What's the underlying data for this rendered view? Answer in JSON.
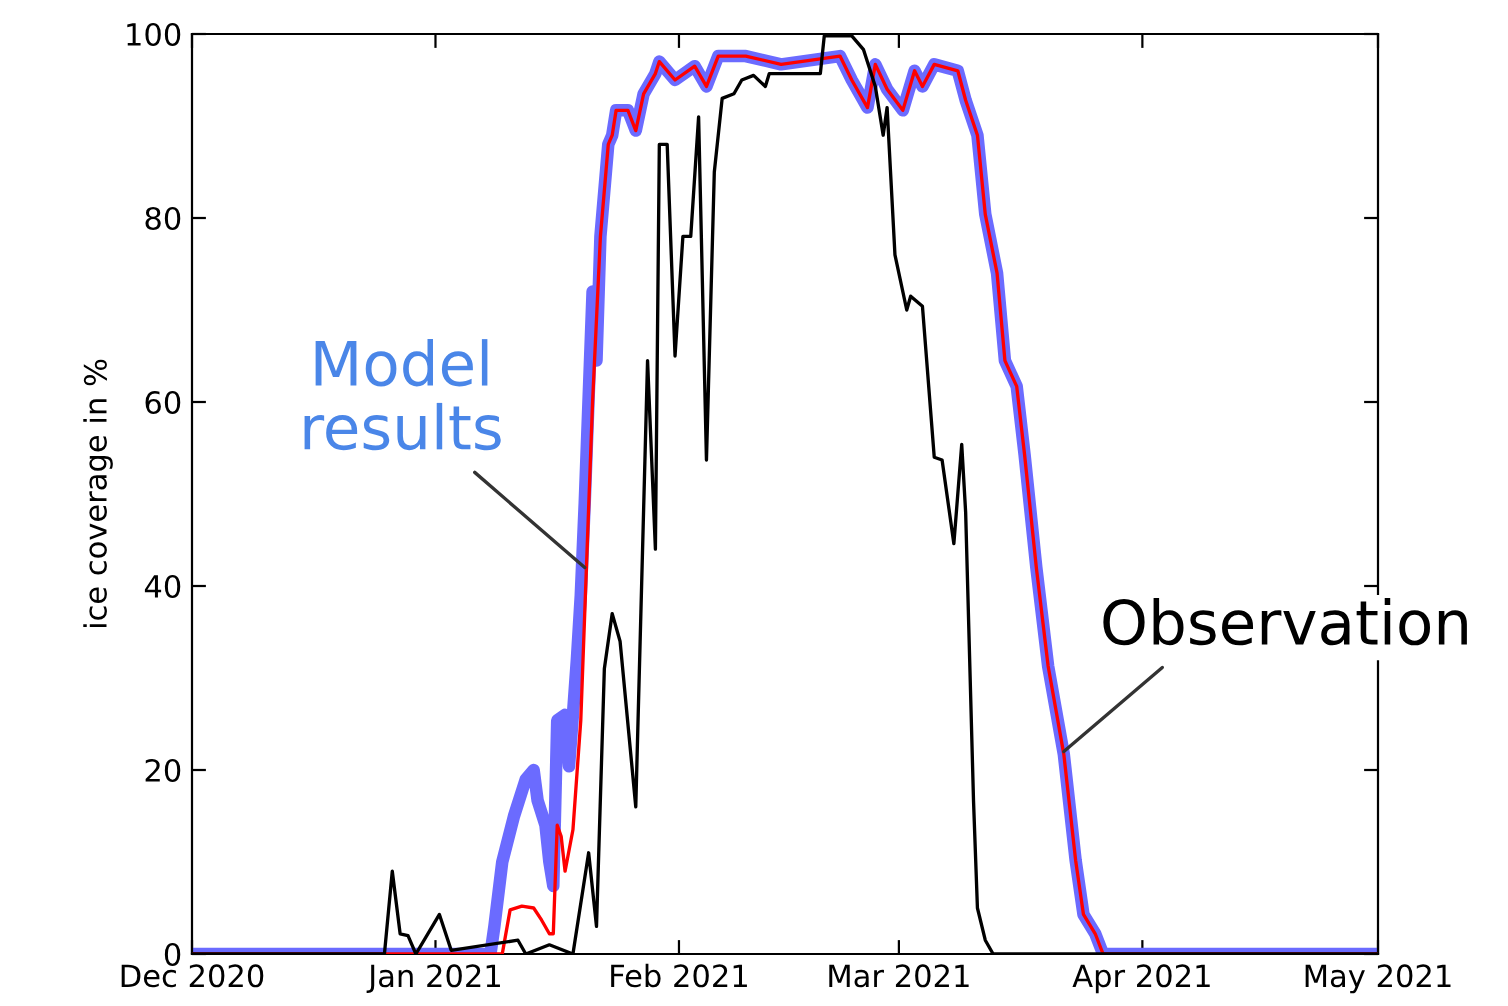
{
  "chart_data": {
    "type": "line",
    "ylabel": "ice coverage in %",
    "xlim": [
      "2020-12-01",
      "2021-05-01"
    ],
    "xticks": [
      {
        "value": "2020-12-01",
        "label": "Dec 2020"
      },
      {
        "value": "2021-01-01",
        "label": "Jan 2021"
      },
      {
        "value": "2021-02-01",
        "label": "Feb 2021"
      },
      {
        "value": "2021-03-01",
        "label": "Mar 2021"
      },
      {
        "value": "2021-04-01",
        "label": "Apr 2021"
      },
      {
        "value": "2021-05-01",
        "label": "May 2021"
      }
    ],
    "ylim": [
      0,
      100
    ],
    "yticks": [
      0,
      20,
      40,
      60,
      80,
      100
    ],
    "grid": false,
    "legend": false,
    "marker": "none",
    "line_style": "solid",
    "series": [
      {
        "color": "#6b6bff",
        "x": [
          "2020-12-01",
          "2021-01-08",
          "2021-01-08T12:00",
          "2021-01-09T12:00",
          "2021-01-11",
          "2021-01-12T12:00",
          "2021-01-13T12:00",
          "2021-01-14",
          "2021-01-15",
          "2021-01-15T12:00",
          "2021-01-16",
          "2021-01-16T12:00",
          "2021-01-17T12:00",
          "2021-01-18",
          "2021-01-18T12:00",
          "2021-01-19",
          "2021-01-19T12:00",
          "2021-01-20",
          "2021-01-21",
          "2021-01-21T12:00",
          "2021-01-22",
          "2021-01-23",
          "2021-01-23T12:00",
          "2021-01-24",
          "2021-01-25T12:00",
          "2021-01-26T12:00",
          "2021-01-27T12:00",
          "2021-01-29",
          "2021-01-29T12:00",
          "2021-01-31T12:00",
          "2021-02-03",
          "2021-02-04T12:00",
          "2021-02-06",
          "2021-02-09T12:00",
          "2021-02-14",
          "2021-02-21T12:00",
          "2021-02-23",
          "2021-02-25",
          "2021-02-26",
          "2021-02-27T12:00",
          "2021-03-01T12:00",
          "2021-03-03",
          "2021-03-04",
          "2021-03-05T12:00",
          "2021-03-08T12:00",
          "2021-03-09T12:00",
          "2021-03-11",
          "2021-03-12",
          "2021-03-13T12:00",
          "2021-03-14T12:00",
          "2021-03-16",
          "2021-03-17",
          "2021-03-18T12:00",
          "2021-03-20",
          "2021-03-22",
          "2021-03-23T12:00",
          "2021-03-24T12:00",
          "2021-03-26",
          "2021-03-27",
          "2021-05-01"
        ],
        "values": [
          0,
          0,
          3,
          10,
          15,
          19,
          20,
          16.7,
          14,
          10,
          7.4,
          25.4,
          26,
          20.4,
          26,
          32,
          39,
          49,
          72,
          64.5,
          78,
          88,
          89,
          91.7,
          91.7,
          89.5,
          93.5,
          95.7,
          97,
          95,
          96.5,
          94.3,
          97.6,
          97.6,
          96.7,
          97.6,
          95,
          92,
          96.7,
          94,
          91.7,
          96,
          94.3,
          96.7,
          96,
          92.8,
          89,
          80.4,
          74,
          64.5,
          61.7,
          54.3,
          42,
          31.3,
          21.7,
          10.2,
          4.3,
          2.2,
          0,
          0
        ]
      },
      {
        "color": "#ff0000",
        "x": [
          "2020-12-01",
          "2021-01-09T12:00",
          "2021-01-10T12:00",
          "2021-01-12",
          "2021-01-13T12:00",
          "2021-01-14T12:00",
          "2021-01-15T12:00",
          "2021-01-16",
          "2021-01-16T12:00",
          "2021-01-17",
          "2021-01-17T12:00",
          "2021-01-18T12:00",
          "2021-01-19T12:00",
          "2021-01-20",
          "2021-01-21",
          "2021-01-22",
          "2021-01-23",
          "2021-01-23T12:00",
          "2021-01-24",
          "2021-01-25T12:00",
          "2021-01-26T12:00",
          "2021-01-27T12:00",
          "2021-01-29",
          "2021-01-29T12:00",
          "2021-01-31T12:00",
          "2021-02-03",
          "2021-02-04T12:00",
          "2021-02-06",
          "2021-02-09T12:00",
          "2021-02-14",
          "2021-02-21T12:00",
          "2021-02-23",
          "2021-02-25",
          "2021-02-26",
          "2021-02-27T12:00",
          "2021-03-01T12:00",
          "2021-03-03",
          "2021-03-04",
          "2021-03-05T12:00",
          "2021-03-08T12:00",
          "2021-03-09T12:00",
          "2021-03-11",
          "2021-03-12",
          "2021-03-13T12:00",
          "2021-03-14T12:00",
          "2021-03-16",
          "2021-03-17",
          "2021-03-18T12:00",
          "2021-03-20",
          "2021-03-22",
          "2021-03-23T12:00",
          "2021-03-24T12:00",
          "2021-03-26",
          "2021-03-27",
          "2021-05-01"
        ],
        "values": [
          0,
          0,
          4.8,
          5.2,
          5,
          3.7,
          2.2,
          2.2,
          14,
          12.8,
          9,
          13.5,
          25.4,
          37,
          60,
          78,
          88,
          89,
          91.7,
          91.7,
          89.5,
          93.5,
          95.7,
          97,
          95,
          96.5,
          94.3,
          97.6,
          97.6,
          96.7,
          97.6,
          95,
          92,
          96.7,
          94,
          91.7,
          96,
          94.3,
          96.7,
          96,
          92.8,
          89,
          80.4,
          74,
          64.5,
          61.7,
          54.3,
          42,
          31.3,
          21.7,
          10.2,
          4.3,
          2.2,
          0,
          0
        ]
      },
      {
        "color": "#000000",
        "x": [
          "2020-12-01",
          "2020-12-25T12:00",
          "2020-12-26T12:00",
          "2020-12-27T12:00",
          "2020-12-28T12:00",
          "2020-12-29T12:00",
          "2021-01-01T12:00",
          "2021-01-03",
          "2021-01-11T12:00",
          "2021-01-12T12:00",
          "2021-01-15T12:00",
          "2021-01-18T12:00",
          "2021-01-20T12:00",
          "2021-01-21T12:00",
          "2021-01-22T12:00",
          "2021-01-23T12:00",
          "2021-01-24T12:00",
          "2021-01-26T12:00",
          "2021-01-28",
          "2021-01-29",
          "2021-01-29T12:00",
          "2021-01-30T12:00",
          "2021-01-31T12:00",
          "2021-02-01T12:00",
          "2021-02-02T12:00",
          "2021-02-03T12:00",
          "2021-02-04T12:00",
          "2021-02-05T12:00",
          "2021-02-06T12:00",
          "2021-02-08",
          "2021-02-09",
          "2021-02-10T12:00",
          "2021-02-12",
          "2021-02-12T12:00",
          "2021-02-19",
          "2021-02-19T12:00",
          "2021-02-23",
          "2021-02-24T12:00",
          "2021-02-26",
          "2021-02-27",
          "2021-02-27T12:00",
          "2021-02-28T12:00",
          "2021-03-02",
          "2021-03-02T12:00",
          "2021-03-04",
          "2021-03-05T12:00",
          "2021-03-06T12:00",
          "2021-03-08",
          "2021-03-09",
          "2021-03-09T12:00",
          "2021-03-10T12:00",
          "2021-03-11",
          "2021-03-12",
          "2021-03-13",
          "2021-05-01"
        ],
        "values": [
          0,
          0,
          9,
          2.2,
          2,
          0,
          4.3,
          0.4,
          1.5,
          0,
          1,
          0,
          11,
          3,
          31,
          37,
          34,
          16,
          64.5,
          44,
          88,
          88,
          65,
          78,
          78,
          91,
          53.7,
          85,
          93,
          93.5,
          95,
          95.5,
          94.3,
          95.7,
          95.7,
          99.8,
          99.8,
          98.3,
          94.3,
          89,
          92,
          76,
          70,
          71.5,
          70.4,
          54,
          53.7,
          44.6,
          55.4,
          48,
          16.7,
          5,
          1.5,
          0,
          0
        ]
      }
    ],
    "annotations": [
      {
        "text": "Model\nresults",
        "x": "2021-01-20",
        "y": 42
      },
      {
        "text": "Observation",
        "x": "2021-03-22",
        "y": 22
      }
    ]
  }
}
